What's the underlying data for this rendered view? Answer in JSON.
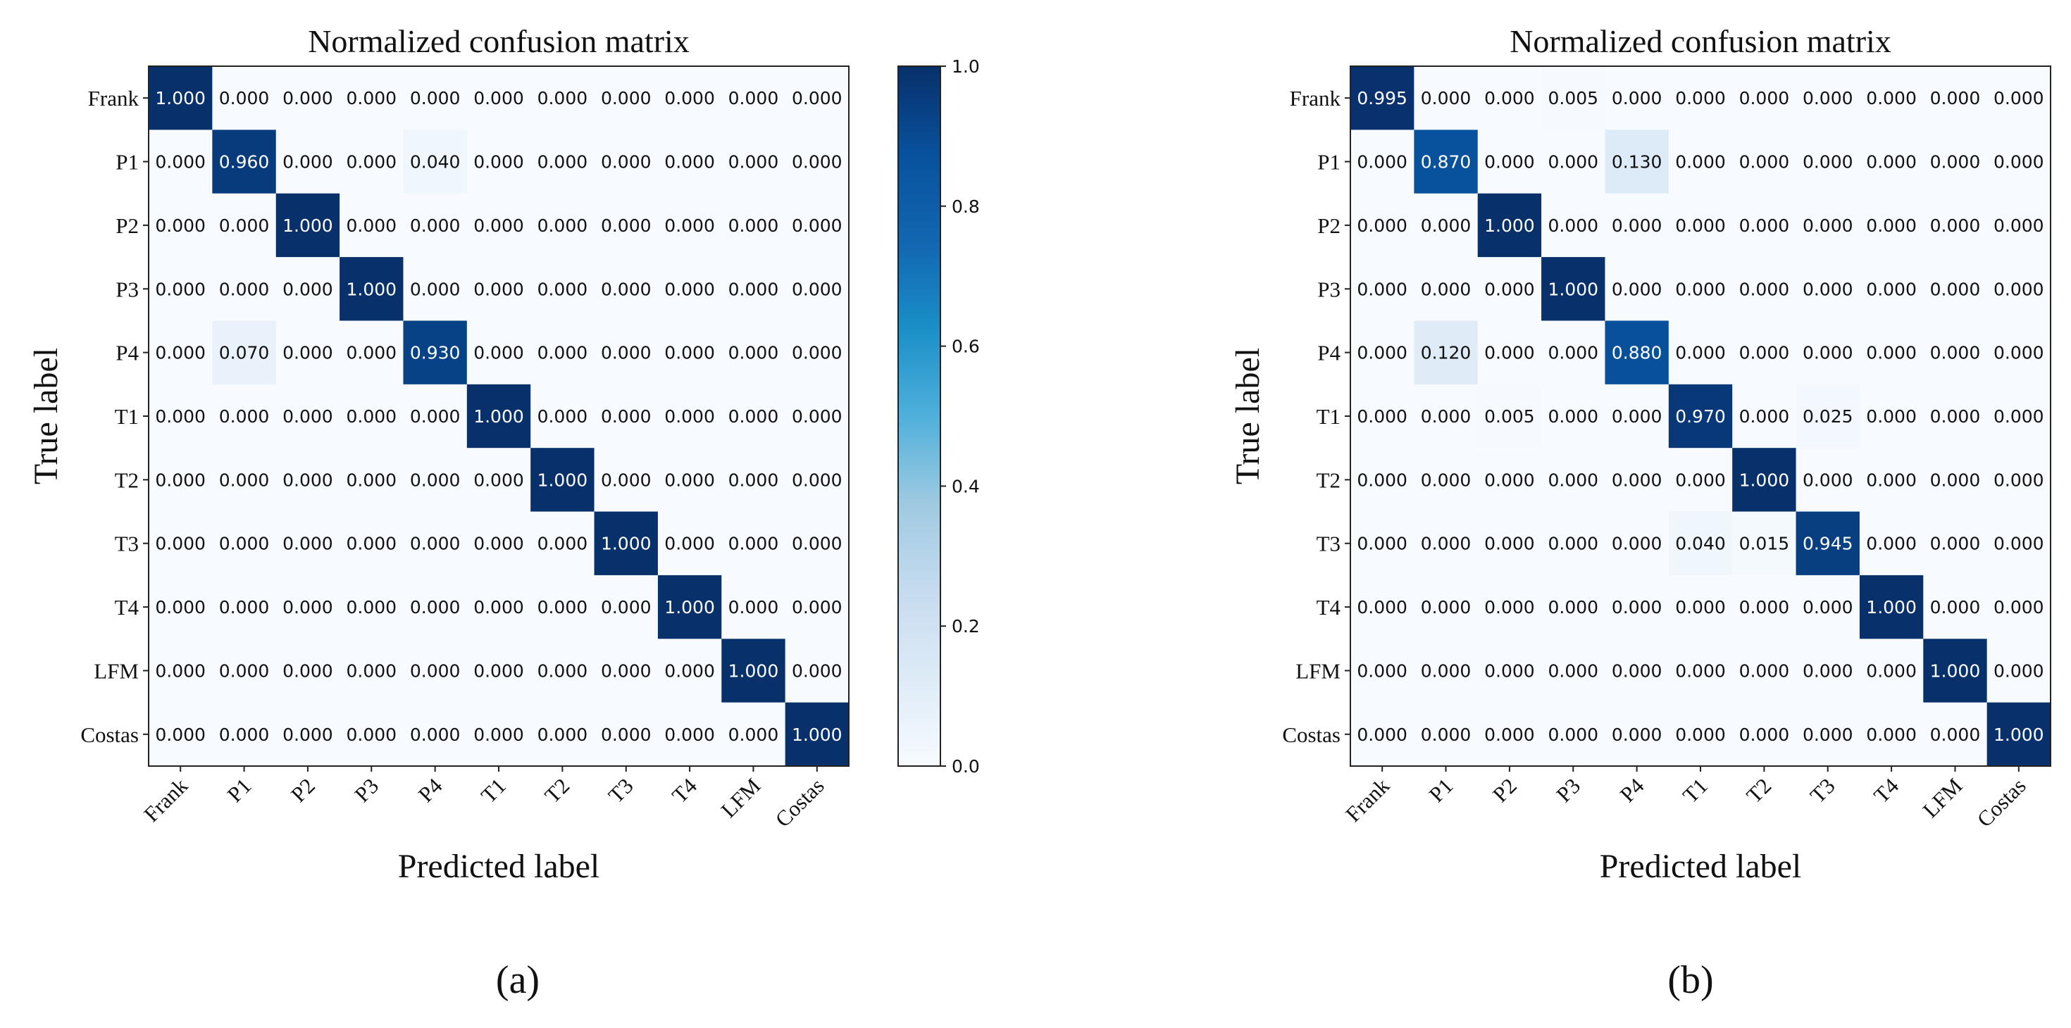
{
  "chart_data": [
    {
      "type": "heatmap",
      "panel_label": "(a)",
      "title": "Normalized confusion matrix",
      "xlabel": "Predicted label",
      "ylabel": "True label",
      "labels": [
        "Frank",
        "P1",
        "P2",
        "P3",
        "P4",
        "T1",
        "T2",
        "T3",
        "T4",
        "LFM",
        "Costas"
      ],
      "colorbar": {
        "range": [
          0,
          1
        ],
        "ticks": [
          "0.0",
          "0.2",
          "0.4",
          "0.6",
          "0.8",
          "1.0"
        ],
        "colormap": "Blues"
      },
      "matrix": [
        [
          1.0,
          0,
          0,
          0,
          0,
          0,
          0,
          0,
          0,
          0,
          0
        ],
        [
          0,
          0.96,
          0,
          0,
          0.04,
          0,
          0,
          0,
          0,
          0,
          0
        ],
        [
          0,
          0,
          1.0,
          0,
          0,
          0,
          0,
          0,
          0,
          0,
          0
        ],
        [
          0,
          0,
          0,
          1.0,
          0,
          0,
          0,
          0,
          0,
          0,
          0
        ],
        [
          0,
          0.07,
          0,
          0,
          0.93,
          0,
          0,
          0,
          0,
          0,
          0
        ],
        [
          0,
          0,
          0,
          0,
          0,
          1.0,
          0,
          0,
          0,
          0,
          0
        ],
        [
          0,
          0,
          0,
          0,
          0,
          0,
          1.0,
          0,
          0,
          0,
          0
        ],
        [
          0,
          0,
          0,
          0,
          0,
          0,
          0,
          1.0,
          0,
          0,
          0
        ],
        [
          0,
          0,
          0,
          0,
          0,
          0,
          0,
          0,
          1.0,
          0,
          0
        ],
        [
          0,
          0,
          0,
          0,
          0,
          0,
          0,
          0,
          0,
          1.0,
          0
        ],
        [
          0,
          0,
          0,
          0,
          0,
          0,
          0,
          0,
          0,
          0,
          1.0
        ]
      ]
    },
    {
      "type": "heatmap",
      "panel_label": "(b)",
      "title": "Normalized confusion matrix",
      "xlabel": "Predicted label",
      "ylabel": "True label",
      "labels": [
        "Frank",
        "P1",
        "P2",
        "P3",
        "P4",
        "T1",
        "T2",
        "T3",
        "T4",
        "LFM",
        "Costas"
      ],
      "matrix": [
        [
          0.995,
          0,
          0,
          0.005,
          0,
          0,
          0,
          0,
          0,
          0,
          0
        ],
        [
          0,
          0.87,
          0,
          0,
          0.13,
          0,
          0,
          0,
          0,
          0,
          0
        ],
        [
          0,
          0,
          1.0,
          0,
          0,
          0,
          0,
          0,
          0,
          0,
          0
        ],
        [
          0,
          0,
          0,
          1.0,
          0,
          0,
          0,
          0,
          0,
          0,
          0
        ],
        [
          0,
          0.12,
          0,
          0,
          0.88,
          0,
          0,
          0,
          0,
          0,
          0
        ],
        [
          0,
          0,
          0.005,
          0,
          0,
          0.97,
          0,
          0.025,
          0,
          0,
          0
        ],
        [
          0,
          0,
          0,
          0,
          0,
          0,
          1.0,
          0,
          0,
          0,
          0
        ],
        [
          0,
          0,
          0,
          0,
          0,
          0.04,
          0.015,
          0.945,
          0,
          0,
          0
        ],
        [
          0,
          0,
          0,
          0,
          0,
          0,
          0,
          0,
          1.0,
          0,
          0
        ],
        [
          0,
          0,
          0,
          0,
          0,
          0,
          0,
          0,
          0,
          1.0,
          0
        ],
        [
          0,
          0,
          0,
          0,
          0,
          0,
          0,
          0,
          0,
          0,
          1.0
        ]
      ]
    }
  ]
}
